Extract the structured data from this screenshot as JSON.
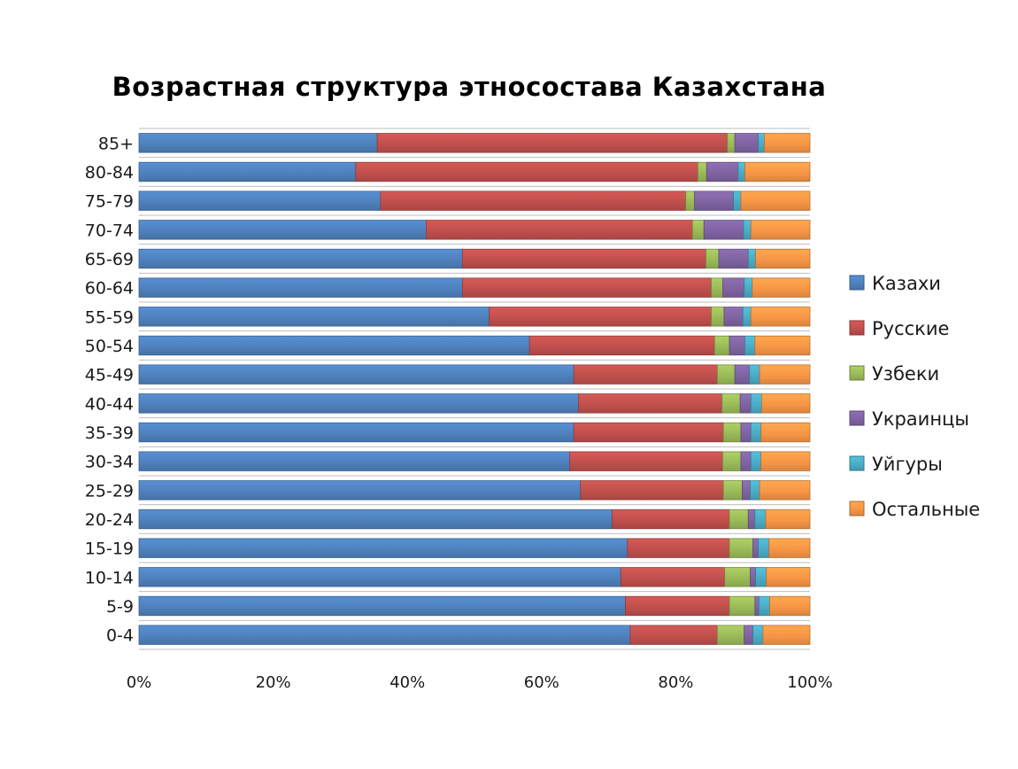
{
  "chart_data": {
    "type": "bar",
    "orientation": "horizontal",
    "stacked": "percent",
    "title": "Возрастная структура этносостава Казахстана",
    "xlabel": "",
    "ylabel": "",
    "xlim": [
      0,
      100
    ],
    "x_ticks": [
      "0%",
      "20%",
      "40%",
      "60%",
      "80%",
      "100%"
    ],
    "grid": true,
    "legend_position": "right",
    "categories": [
      "85+",
      "80-84",
      "75-79",
      "70-74",
      "65-69",
      "60-64",
      "55-59",
      "50-54",
      "45-49",
      "40-44",
      "35-39",
      "30-34",
      "25-29",
      "20-24",
      "15-19",
      "10-14",
      "5-9",
      "0-4"
    ],
    "series": [
      {
        "name": "Казахи",
        "color": "#4F81BD",
        "values": [
          35.5,
          32.3,
          36.0,
          42.8,
          48.2,
          48.2,
          52.2,
          58.2,
          64.8,
          65.5,
          64.8,
          64.2,
          65.8,
          70.5,
          72.8,
          71.8,
          72.5,
          73.2
        ]
      },
      {
        "name": "Русские",
        "color": "#C0504D",
        "values": [
          52.2,
          51.0,
          45.5,
          39.7,
          36.3,
          37.1,
          33.1,
          27.6,
          21.4,
          21.4,
          22.3,
          22.8,
          21.3,
          17.5,
          15.2,
          15.5,
          15.5,
          13.0
        ]
      },
      {
        "name": "Узбеки",
        "color": "#9BBB59",
        "values": [
          1.1,
          1.3,
          1.3,
          1.7,
          1.9,
          1.7,
          1.9,
          2.2,
          2.6,
          2.7,
          2.6,
          2.7,
          2.8,
          2.8,
          3.5,
          3.8,
          3.8,
          4.0
        ]
      },
      {
        "name": "Украинцы",
        "color": "#8064A2",
        "values": [
          3.5,
          4.7,
          5.8,
          5.9,
          4.4,
          3.2,
          2.8,
          2.3,
          2.2,
          1.6,
          1.5,
          1.5,
          1.2,
          1.0,
          0.8,
          0.8,
          0.6,
          1.3
        ]
      },
      {
        "name": "Уйгуры",
        "color": "#4BACC6",
        "values": [
          0.9,
          1.0,
          1.1,
          1.1,
          1.1,
          1.2,
          1.2,
          1.5,
          1.5,
          1.6,
          1.5,
          1.5,
          1.4,
          1.6,
          1.6,
          1.6,
          1.6,
          1.5
        ]
      },
      {
        "name": "Остальные",
        "color": "#F79646",
        "values": [
          6.8,
          9.7,
          10.3,
          8.8,
          8.1,
          8.6,
          8.8,
          8.2,
          7.5,
          7.2,
          7.3,
          7.3,
          7.5,
          6.6,
          6.1,
          6.5,
          6.0,
          7.0
        ]
      }
    ]
  }
}
